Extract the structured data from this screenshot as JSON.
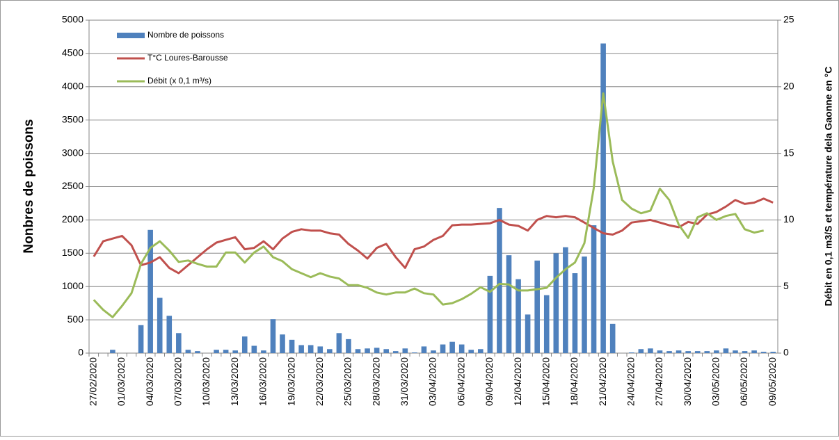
{
  "chart_data": {
    "type": "bar",
    "y_label": "Nonbres de poissons",
    "y2_label": "Débit en 0,1 m3/S et température dela Gaonne en °C",
    "categories": [
      "27/02/2020",
      null,
      null,
      "01/03/2020",
      null,
      null,
      "04/03/2020",
      null,
      null,
      "07/03/2020",
      null,
      null,
      "10/03/2020",
      null,
      null,
      "13/03/2020",
      null,
      null,
      "16/03/2020",
      null,
      null,
      "19/03/2020",
      null,
      null,
      "22/03/2020",
      null,
      null,
      "25/03/2020",
      null,
      null,
      "28/03/2020",
      null,
      null,
      "31/03/2020",
      null,
      null,
      "03/04/2020",
      null,
      null,
      "06/04/2020",
      null,
      null,
      "09/04/2020",
      null,
      null,
      "12/04/2020",
      null,
      null,
      "15/04/2020",
      null,
      null,
      "18/04/2020",
      null,
      null,
      "21/04/2020",
      null,
      null,
      "24/04/2020",
      null,
      null,
      "27/04/2020",
      null,
      null,
      "30/04/2020",
      null,
      null,
      "03/05/2020",
      null,
      null,
      "06/05/2020",
      null,
      null,
      "09/05/2020"
    ],
    "series": [
      {
        "name": "Nombre de poissons",
        "type": "bar",
        "color": "#4f81bd",
        "values": [
          0,
          0,
          50,
          0,
          0,
          420,
          1850,
          830,
          560,
          300,
          50,
          30,
          0,
          50,
          50,
          40,
          250,
          110,
          40,
          510,
          280,
          200,
          120,
          120,
          100,
          60,
          300,
          210,
          60,
          70,
          80,
          60,
          30,
          70,
          10,
          100,
          40,
          130,
          170,
          130,
          50,
          60,
          1160,
          2180,
          1470,
          1110,
          580,
          1390,
          870,
          1500,
          1590,
          1200,
          1450,
          1920,
          4650,
          440,
          0,
          10,
          60,
          70,
          40,
          30,
          40,
          30,
          30,
          30,
          40,
          70,
          40,
          30,
          40,
          20,
          20
        ]
      },
      {
        "name": "T°C Loures-Barousse",
        "type": "line",
        "axis": "y2",
        "color": "#c0504d",
        "values": [
          7.25,
          8.4,
          8.6,
          8.8,
          8.1,
          6.6,
          6.8,
          7.2,
          6.4,
          6.0,
          6.6,
          7.2,
          7.8,
          8.3,
          8.5,
          8.7,
          7.8,
          7.9,
          8.4,
          7.8,
          8.6,
          9.1,
          9.3,
          9.2,
          9.2,
          9.0,
          8.9,
          8.2,
          7.7,
          7.1,
          7.9,
          8.2,
          7.2,
          6.4,
          7.8,
          8.0,
          8.5,
          8.8,
          9.6,
          9.65,
          9.65,
          9.7,
          9.75,
          10.0,
          9.65,
          9.55,
          9.2,
          10.0,
          10.3,
          10.2,
          10.3,
          10.2,
          9.8,
          9.4,
          9.0,
          8.9,
          9.2,
          9.8,
          9.9,
          10.0,
          9.8,
          9.6,
          9.45,
          9.85,
          9.7,
          10.4,
          10.6,
          11.0,
          11.5,
          11.2,
          11.3,
          11.6,
          11.3
        ]
      },
      {
        "name": "Débit (x 0,1 m³/s)",
        "type": "line",
        "axis": "y2",
        "color": "#9bbb59",
        "values": [
          4.0,
          3.25,
          2.7,
          3.55,
          4.5,
          6.7,
          7.9,
          8.4,
          7.7,
          6.85,
          6.95,
          6.7,
          6.5,
          6.5,
          7.55,
          7.55,
          6.8,
          7.55,
          8.0,
          7.2,
          6.9,
          6.3,
          6.0,
          5.7,
          6.0,
          5.75,
          5.6,
          5.1,
          5.1,
          4.9,
          4.55,
          4.4,
          4.55,
          4.55,
          4.85,
          4.5,
          4.4,
          3.65,
          3.75,
          4.05,
          4.45,
          4.95,
          4.6,
          5.2,
          5.15,
          4.7,
          4.7,
          4.8,
          4.9,
          5.65,
          6.3,
          6.8,
          8.25,
          12.4,
          19.5,
          14.4,
          11.5,
          10.85,
          10.5,
          10.7,
          12.35,
          11.5,
          9.65,
          8.65,
          10.2,
          10.5,
          10.0,
          10.3,
          10.45,
          9.3,
          9.05,
          9.2,
          null
        ]
      }
    ],
    "ylim": [
      0,
      5000
    ],
    "yticks": [
      0,
      500,
      1000,
      1500,
      2000,
      2500,
      3000,
      3500,
      4000,
      4500,
      5000
    ],
    "y2lim": [
      0,
      25
    ],
    "y2ticks": [
      0,
      5,
      10,
      15,
      20,
      25
    ],
    "grid": true,
    "legend": "top-left"
  }
}
